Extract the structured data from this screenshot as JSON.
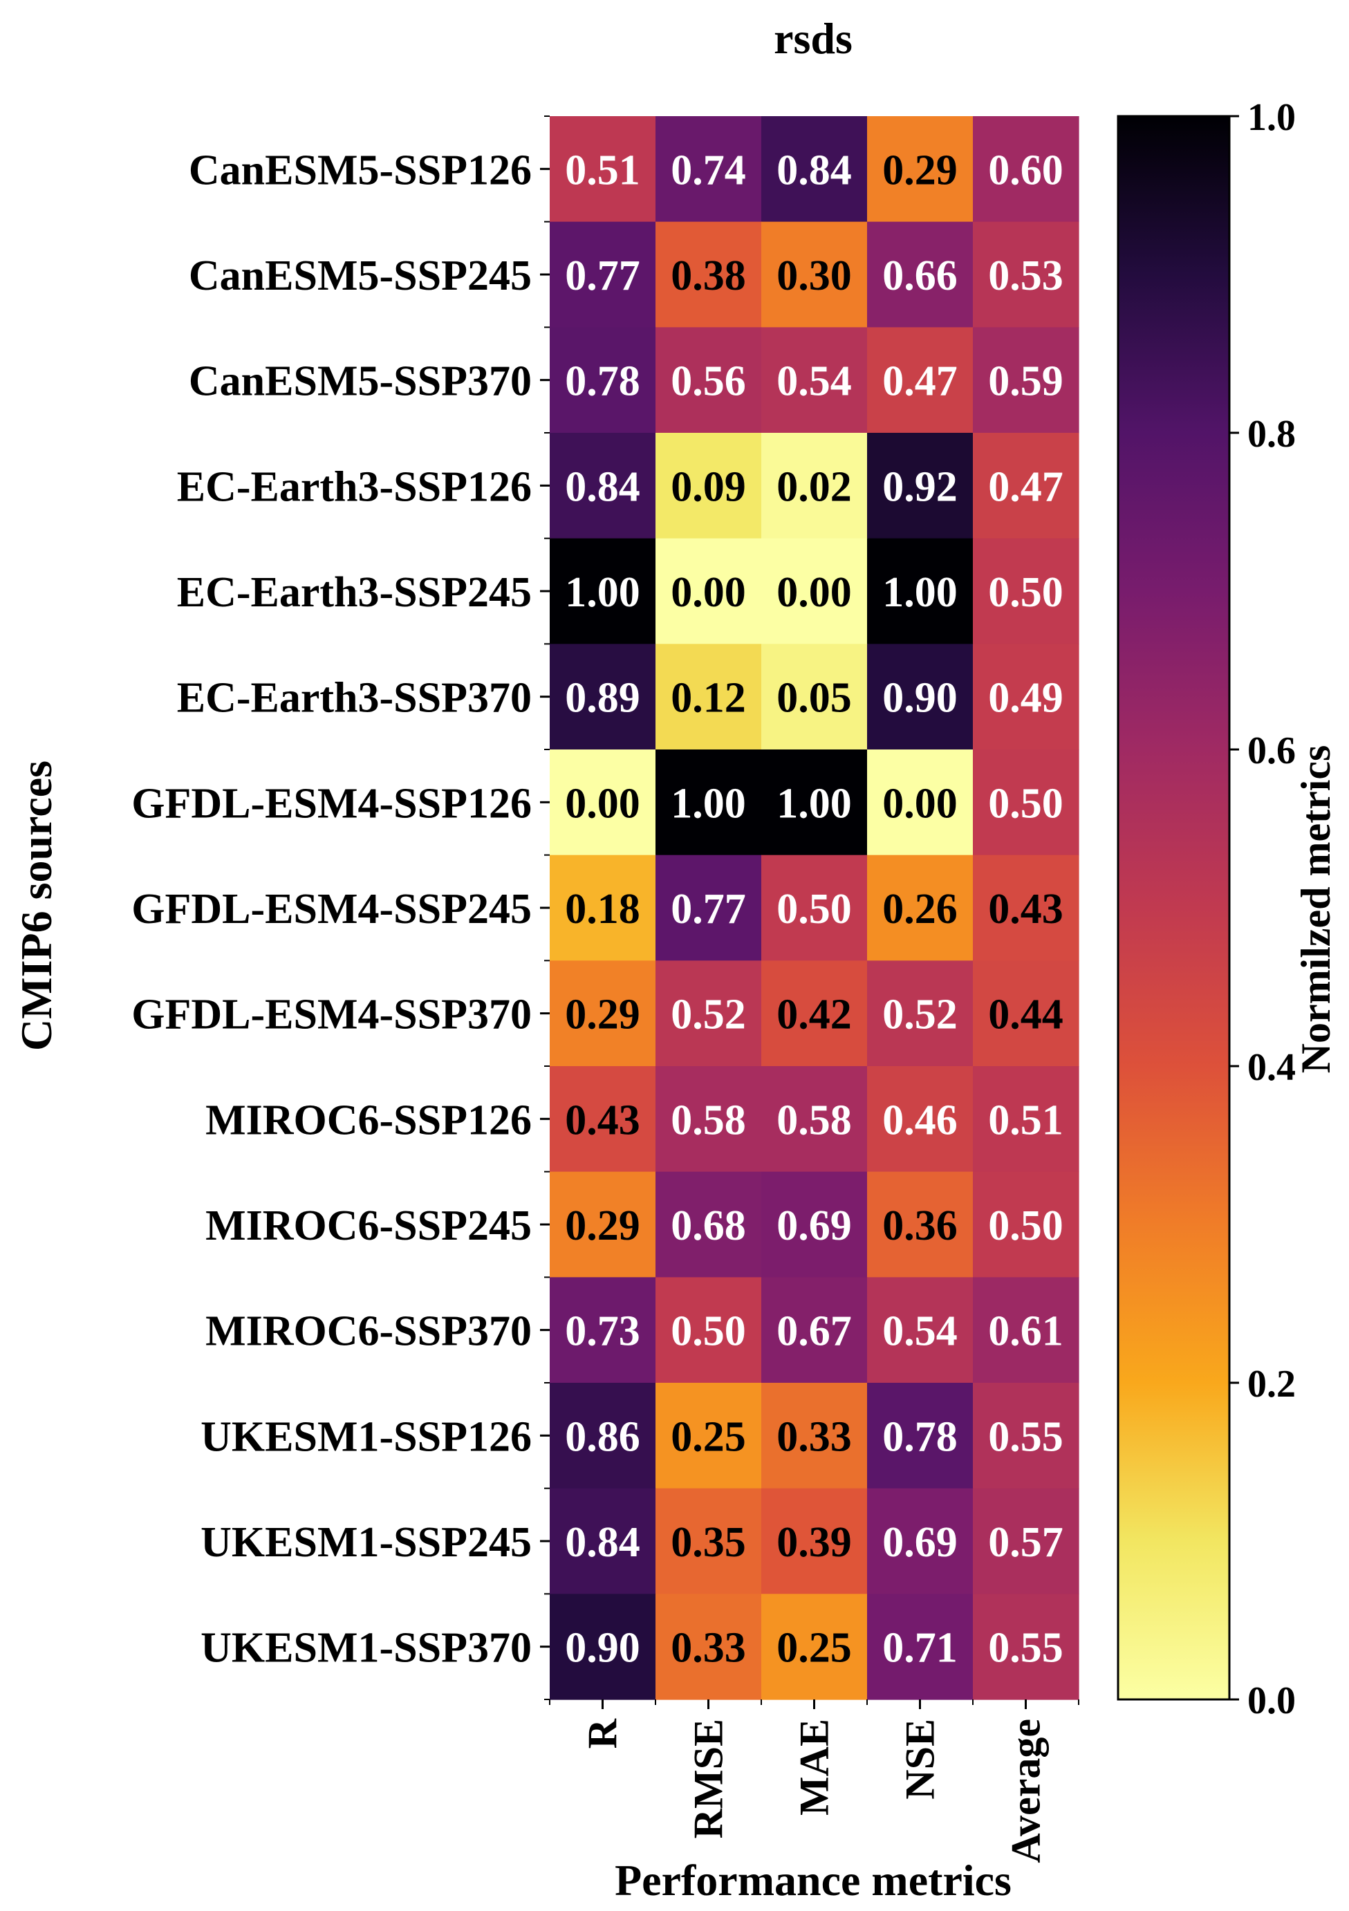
{
  "chart_data": {
    "type": "heatmap",
    "title": "rsds",
    "xlabel": "Performance metrics",
    "ylabel": "CMIP6 sources",
    "colorbar_label": "Normilzed metrics",
    "colormap": "inferno_r",
    "colorbar_range": [
      0.0,
      1.0
    ],
    "colorbar_ticks": [
      "0.0",
      "0.2",
      "0.4",
      "0.6",
      "0.8",
      "1.0"
    ],
    "columns": [
      "R",
      "RMSE",
      "MAE",
      "NSE",
      "Average"
    ],
    "rows": [
      "CanESM5-SSP126",
      "CanESM5-SSP245",
      "CanESM5-SSP370",
      "EC-Earth3-SSP126",
      "EC-Earth3-SSP245",
      "EC-Earth3-SSP370",
      "GFDL-ESM4-SSP126",
      "GFDL-ESM4-SSP245",
      "GFDL-ESM4-SSP370",
      "MIROC6-SSP126",
      "MIROC6-SSP245",
      "MIROC6-SSP370",
      "UKESM1-SSP126",
      "UKESM1-SSP245",
      "UKESM1-SSP370"
    ],
    "values": [
      [
        0.51,
        0.74,
        0.84,
        0.29,
        0.6
      ],
      [
        0.77,
        0.38,
        0.3,
        0.66,
        0.53
      ],
      [
        0.78,
        0.56,
        0.54,
        0.47,
        0.59
      ],
      [
        0.84,
        0.09,
        0.02,
        0.92,
        0.47
      ],
      [
        1.0,
        0.0,
        0.0,
        1.0,
        0.5
      ],
      [
        0.89,
        0.12,
        0.05,
        0.9,
        0.49
      ],
      [
        0.0,
        1.0,
        1.0,
        0.0,
        0.5
      ],
      [
        0.18,
        0.77,
        0.5,
        0.26,
        0.43
      ],
      [
        0.29,
        0.52,
        0.42,
        0.52,
        0.44
      ],
      [
        0.43,
        0.58,
        0.58,
        0.46,
        0.51
      ],
      [
        0.29,
        0.68,
        0.69,
        0.36,
        0.5
      ],
      [
        0.73,
        0.5,
        0.67,
        0.54,
        0.61
      ],
      [
        0.86,
        0.25,
        0.33,
        0.78,
        0.55
      ],
      [
        0.84,
        0.35,
        0.39,
        0.69,
        0.57
      ],
      [
        0.9,
        0.33,
        0.25,
        0.71,
        0.55
      ]
    ]
  }
}
